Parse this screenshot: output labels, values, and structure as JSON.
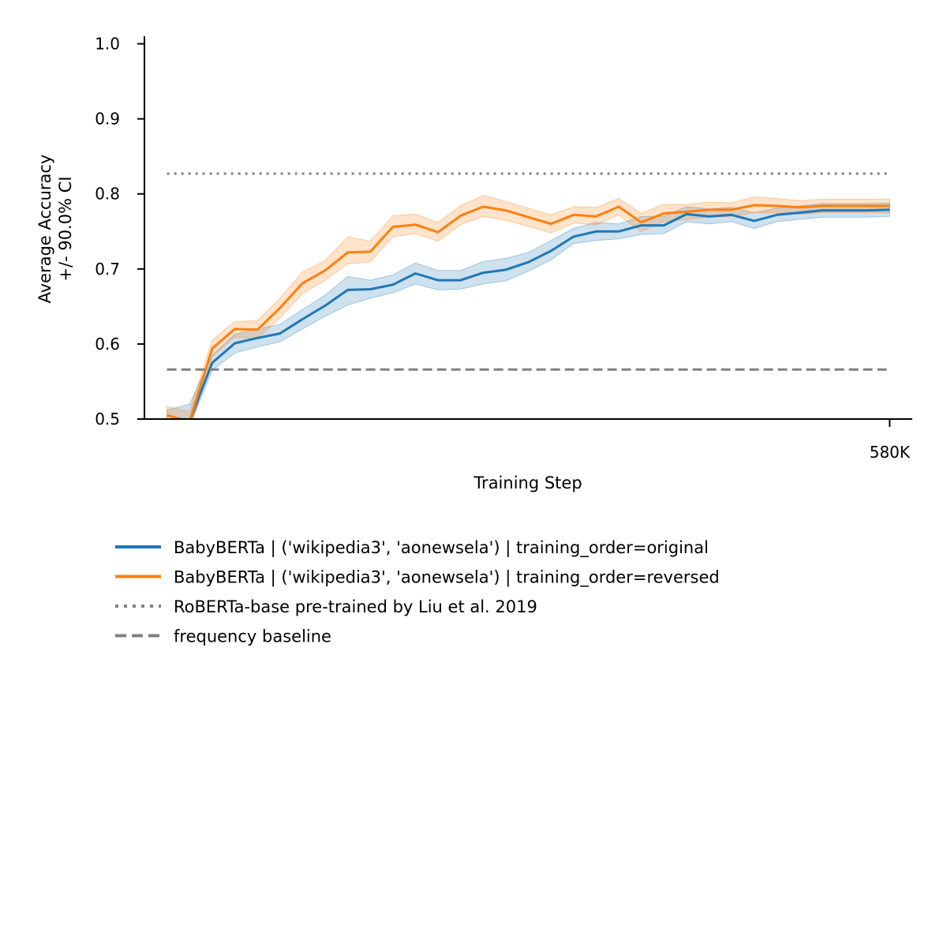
{
  "chart_data": {
    "type": "line",
    "xlabel": "Training Step",
    "ylabel_line1": "Average Accuracy",
    "ylabel_line2": "+/- 90.0% CI",
    "ylim": [
      0.5,
      1.01
    ],
    "xlim": [
      -1,
      33
    ],
    "y_ticks": [
      {
        "value": 0.5,
        "label": "0.5"
      },
      {
        "value": 0.6,
        "label": "0.6"
      },
      {
        "value": 0.7,
        "label": "0.7"
      },
      {
        "value": 0.8,
        "label": "0.8"
      },
      {
        "value": 0.9,
        "label": "0.9"
      },
      {
        "value": 1.0,
        "label": "1.0"
      }
    ],
    "x_ticks": [
      {
        "value": 32,
        "label": "580K"
      }
    ],
    "x": [
      0,
      1,
      2,
      3,
      4,
      5,
      6,
      7,
      8,
      9,
      10,
      11,
      12,
      13,
      14,
      15,
      16,
      17,
      18,
      19,
      20,
      21,
      22,
      23,
      24,
      25,
      26,
      27,
      28,
      29,
      30,
      31,
      32
    ],
    "series": [
      {
        "name": "BabyBERTa | ('wikipedia3', 'aonewsela') | training_order=original",
        "color": "#1f77b4",
        "values": [
          0.497,
          0.497,
          0.575,
          0.601,
          0.608,
          0.614,
          0.633,
          0.651,
          0.672,
          0.673,
          0.679,
          0.694,
          0.685,
          0.685,
          0.695,
          0.699,
          0.709,
          0.724,
          0.743,
          0.75,
          0.75,
          0.758,
          0.758,
          0.773,
          0.77,
          0.772,
          0.764,
          0.772,
          0.775,
          0.778,
          0.778,
          0.778,
          0.779
        ],
        "ci_low": [
          0.48,
          0.49,
          0.565,
          0.588,
          0.596,
          0.603,
          0.62,
          0.637,
          0.652,
          0.661,
          0.668,
          0.68,
          0.672,
          0.673,
          0.68,
          0.684,
          0.697,
          0.712,
          0.734,
          0.738,
          0.74,
          0.746,
          0.747,
          0.763,
          0.76,
          0.763,
          0.754,
          0.763,
          0.766,
          0.769,
          0.769,
          0.769,
          0.77
        ],
        "ci_high": [
          0.512,
          0.52,
          0.585,
          0.613,
          0.62,
          0.626,
          0.646,
          0.665,
          0.69,
          0.685,
          0.692,
          0.708,
          0.698,
          0.698,
          0.71,
          0.714,
          0.722,
          0.738,
          0.754,
          0.762,
          0.76,
          0.77,
          0.77,
          0.783,
          0.78,
          0.782,
          0.775,
          0.781,
          0.784,
          0.787,
          0.787,
          0.787,
          0.788
        ]
      },
      {
        "name": "BabyBERTa | ('wikipedia3', 'aonewsela') | training_order=reversed",
        "color": "#ff7f0e",
        "values": [
          0.505,
          0.497,
          0.594,
          0.62,
          0.619,
          0.648,
          0.681,
          0.698,
          0.722,
          0.723,
          0.756,
          0.759,
          0.749,
          0.771,
          0.783,
          0.778,
          0.769,
          0.76,
          0.772,
          0.77,
          0.783,
          0.762,
          0.774,
          0.776,
          0.779,
          0.779,
          0.785,
          0.784,
          0.782,
          0.784,
          0.784,
          0.784,
          0.784
        ],
        "ci_low": [
          0.493,
          0.485,
          0.583,
          0.609,
          0.607,
          0.635,
          0.667,
          0.685,
          0.707,
          0.709,
          0.743,
          0.747,
          0.737,
          0.759,
          0.77,
          0.765,
          0.757,
          0.748,
          0.761,
          0.759,
          0.772,
          0.75,
          0.763,
          0.766,
          0.769,
          0.77,
          0.775,
          0.775,
          0.773,
          0.775,
          0.775,
          0.775,
          0.775
        ],
        "ci_high": [
          0.517,
          0.51,
          0.605,
          0.63,
          0.631,
          0.661,
          0.696,
          0.711,
          0.743,
          0.737,
          0.771,
          0.773,
          0.762,
          0.784,
          0.798,
          0.79,
          0.781,
          0.772,
          0.783,
          0.782,
          0.794,
          0.774,
          0.786,
          0.786,
          0.789,
          0.788,
          0.796,
          0.794,
          0.791,
          0.793,
          0.793,
          0.793,
          0.793
        ]
      }
    ],
    "reference_lines": [
      {
        "name": "RoBERTa-base pre-trained by Liu et al. 2019",
        "y": 0.827,
        "style": "dotted",
        "color": "#808080"
      },
      {
        "name": "frequency baseline",
        "y": 0.566,
        "style": "dashed",
        "color": "#808080"
      }
    ],
    "legend_placement": "below"
  }
}
